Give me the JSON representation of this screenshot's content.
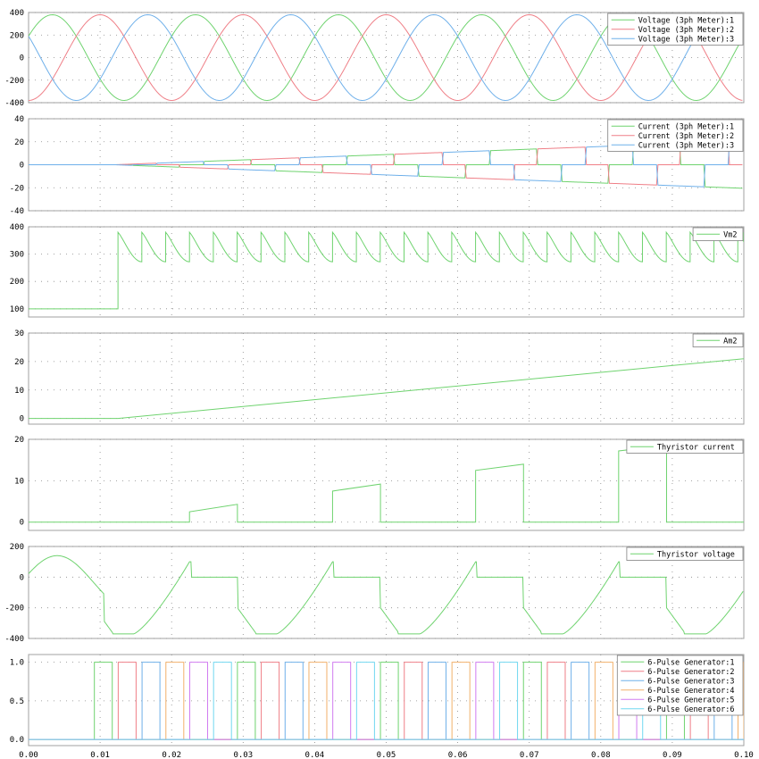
{
  "x_axis": {
    "ticks": [
      "0.00",
      "0.01",
      "0.02",
      "0.03",
      "0.04",
      "0.05",
      "0.06",
      "0.07",
      "0.08",
      "0.09",
      "0.10"
    ]
  },
  "colors": {
    "green": "#6fd36f",
    "red": "#ef7f87",
    "blue": "#6fb0ea",
    "orange": "#f2b16b",
    "purple": "#d17cf0",
    "cyan": "#70d8f0"
  },
  "chart_data": [
    {
      "type": "line",
      "xlim": [
        0,
        0.1
      ],
      "ylim": [
        -400,
        400
      ],
      "yticks": [
        "400",
        "200",
        "0",
        "-200",
        "-400"
      ],
      "grid": true,
      "legend": "top-right",
      "series": [
        {
          "name": "Voltage (3ph Meter):1",
          "color": "#6fd36f",
          "points": [
            [
              0,
              200
            ],
            [
              0.005,
              380
            ],
            [
              0.0117,
              0
            ],
            [
              0.0183,
              -380
            ],
            [
              0.025,
              0
            ],
            [
              0.0317,
              380
            ],
            [
              0.0383,
              0
            ],
            [
              0.045,
              -380
            ],
            [
              0.0517,
              0
            ],
            [
              0.0583,
              380
            ],
            [
              0.065,
              0
            ],
            [
              0.0717,
              -380
            ],
            [
              0.0783,
              0
            ],
            [
              0.085,
              380
            ],
            [
              0.0917,
              0
            ],
            [
              0.0983,
              -380
            ],
            [
              0.1,
              -340
            ]
          ]
        },
        {
          "name": "Voltage (3ph Meter):2",
          "color": "#ef7f87",
          "points": [
            [
              0,
              -380
            ],
            [
              0.005,
              0
            ],
            [
              0.0117,
              380
            ],
            [
              0.0183,
              0
            ],
            [
              0.025,
              -380
            ],
            [
              0.0317,
              0
            ],
            [
              0.0383,
              380
            ],
            [
              0.045,
              0
            ],
            [
              0.0517,
              -380
            ],
            [
              0.0583,
              0
            ],
            [
              0.065,
              380
            ],
            [
              0.0717,
              0
            ],
            [
              0.0783,
              -380
            ],
            [
              0.085,
              0
            ],
            [
              0.0917,
              380
            ],
            [
              0.0983,
              0
            ],
            [
              0.1,
              -130
            ]
          ]
        },
        {
          "name": "Voltage (3ph Meter):3",
          "color": "#6fb0ea",
          "points": [
            [
              0,
              200
            ],
            [
              0.005,
              -380
            ],
            [
              0.0117,
              0
            ],
            [
              0.0183,
              380
            ],
            [
              0.025,
              0
            ],
            [
              0.0317,
              -380
            ],
            [
              0.0383,
              0
            ],
            [
              0.045,
              380
            ],
            [
              0.0517,
              0
            ],
            [
              0.0583,
              -380
            ],
            [
              0.065,
              0
            ],
            [
              0.0717,
              380
            ],
            [
              0.0783,
              0
            ],
            [
              0.085,
              -380
            ],
            [
              0.0917,
              0
            ],
            [
              0.0983,
              380
            ],
            [
              0.1,
              330
            ]
          ]
        }
      ]
    },
    {
      "type": "line",
      "xlim": [
        0,
        0.1
      ],
      "ylim": [
        -40,
        40
      ],
      "yticks": [
        "40",
        "20",
        "0",
        "-20",
        "-40"
      ],
      "grid": true,
      "legend": "top-right",
      "series": [
        {
          "name": "Current (3ph Meter):1",
          "color": "#6fd36f",
          "envelope": [
            [
              0,
              0
            ],
            [
              0.012,
              0
            ],
            [
              0.1,
              21
            ]
          ],
          "envelope_low": [
            [
              0,
              0
            ],
            [
              0.012,
              0
            ],
            [
              0.1,
              -21
            ]
          ]
        },
        {
          "name": "Current (3ph Meter):2",
          "color": "#ef7f87",
          "envelope": [
            [
              0,
              0
            ],
            [
              0.012,
              0
            ],
            [
              0.1,
              20
            ]
          ],
          "envelope_low": [
            [
              0,
              0
            ],
            [
              0.012,
              0
            ],
            [
              0.1,
              -20
            ]
          ]
        },
        {
          "name": "Current (3ph Meter):3",
          "color": "#6fb0ea",
          "envelope": [
            [
              0,
              0
            ],
            [
              0.012,
              0
            ],
            [
              0.1,
              20
            ]
          ],
          "envelope_low": [
            [
              0,
              0
            ],
            [
              0.012,
              0
            ],
            [
              0.1,
              -20
            ]
          ]
        }
      ]
    },
    {
      "type": "line",
      "xlim": [
        0,
        0.1
      ],
      "ylim": [
        70,
        400
      ],
      "yticks": [
        "400",
        "300",
        "200",
        "100"
      ],
      "grid": true,
      "legend": "top-right",
      "series": [
        {
          "name": "Vm2",
          "color": "#6fd36f",
          "low": 100,
          "on": 0.0125,
          "peak": 380,
          "dip": 272,
          "period": 0.003333
        }
      ]
    },
    {
      "type": "line",
      "xlim": [
        0,
        0.1
      ],
      "ylim": [
        -2,
        30
      ],
      "yticks": [
        "30",
        "20",
        "10",
        "0"
      ],
      "grid": true,
      "legend": "top-right",
      "series": [
        {
          "name": "Am2",
          "color": "#6fd36f",
          "points": [
            [
              0,
              0
            ],
            [
              0.0125,
              0
            ],
            [
              0.1,
              21
            ]
          ]
        }
      ]
    },
    {
      "type": "line",
      "xlim": [
        0,
        0.1
      ],
      "ylim": [
        -2,
        20
      ],
      "yticks": [
        "20",
        "10",
        "0"
      ],
      "grid": true,
      "legend": "top-right",
      "series": [
        {
          "name": "Thyristor current",
          "color": "#6fd36f",
          "pulses": [
            [
              0.0225,
              0.0292,
              2.5,
              4.3
            ],
            [
              0.0425,
              0.0492,
              7.5,
              9.2
            ],
            [
              0.0625,
              0.0692,
              12.5,
              14
            ],
            [
              0.0825,
              0.0892,
              17.2,
              18.5
            ]
          ]
        }
      ]
    },
    {
      "type": "line",
      "xlim": [
        0,
        0.1
      ],
      "ylim": [
        -400,
        200
      ],
      "yticks": [
        "200",
        "0",
        "-200",
        "-400"
      ],
      "grid": true,
      "legend": "top-right",
      "series": [
        {
          "name": "Thyristor voltage",
          "color": "#6fd36f"
        }
      ]
    },
    {
      "type": "line",
      "xlim": [
        0,
        0.1
      ],
      "ylim": [
        -0.08,
        1.1
      ],
      "yticks": [
        "1.0",
        "0.5",
        "0.0"
      ],
      "grid": true,
      "legend": "top-right",
      "series": [
        {
          "name": "6-Pulse Generator:1",
          "color": "#6fd36f"
        },
        {
          "name": "6-Pulse Generator:2",
          "color": "#ef7f87"
        },
        {
          "name": "6-Pulse Generator:3",
          "color": "#6fb0ea"
        },
        {
          "name": "6-Pulse Generator:4",
          "color": "#f2b16b"
        },
        {
          "name": "6-Pulse Generator:5",
          "color": "#d17cf0"
        },
        {
          "name": "6-Pulse Generator:6",
          "color": "#70d8f0"
        }
      ],
      "pulse_start": 0.0092,
      "pulse_step": 0.003333,
      "pulse_width": 0.0025
    }
  ]
}
